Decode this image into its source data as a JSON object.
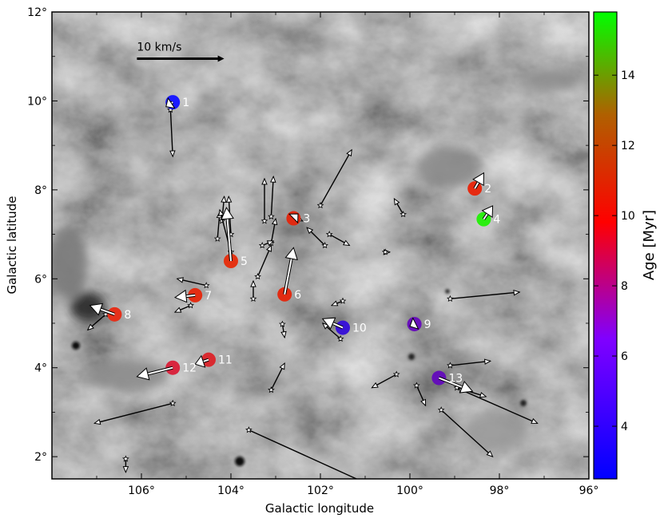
{
  "chart_data": {
    "type": "scatter",
    "xlabel": "Galactic longitude",
    "ylabel": "Galactic latitude",
    "xlim": [
      108,
      96
    ],
    "ylim": [
      1.5,
      12
    ],
    "x_reversed": true,
    "xticks": [
      106,
      104,
      102,
      100,
      98,
      96
    ],
    "xtick_labels": [
      "106°",
      "104°",
      "102°",
      "100°",
      "98°",
      "96°"
    ],
    "yticks": [
      2,
      4,
      6,
      8,
      10,
      12
    ],
    "ytick_labels": [
      "2°",
      "4°",
      "6°",
      "8°",
      "10°",
      "12°"
    ],
    "scale_bar": {
      "label": "10 km/s",
      "l": 106.1,
      "b": 10.95,
      "length_deg": 1.95
    },
    "colorbar": {
      "label": "Age [Myr]",
      "min": 2.5,
      "max": 15.8,
      "ticks": [
        4,
        6,
        8,
        10,
        12,
        14
      ],
      "tick_labels": [
        "4",
        "6",
        "8",
        "10",
        "12",
        "14"
      ],
      "colors": [
        "#0000ff",
        "#8000ff",
        "#ff0000",
        "#00ff00"
      ]
    },
    "clusters": [
      {
        "id": "1",
        "l": 105.3,
        "b": 9.97,
        "age": 2.8,
        "color": "#1a1aff",
        "dl": 0.15,
        "db": -0.1
      },
      {
        "id": "2",
        "l": 98.55,
        "b": 8.03,
        "age": 9.8,
        "color": "#e62a10",
        "dl": -0.2,
        "db": 0.35
      },
      {
        "id": "3",
        "l": 102.6,
        "b": 7.36,
        "age": 10.1,
        "color": "#e02a12",
        "dl": -0.1,
        "db": 0.1
      },
      {
        "id": "4",
        "l": 98.35,
        "b": 7.34,
        "age": 15.5,
        "color": "#2bee11",
        "dl": -0.2,
        "db": 0.3
      },
      {
        "id": "5",
        "l": 104.0,
        "b": 6.4,
        "age": 9.9,
        "color": "#e43212",
        "dl": 0.1,
        "db": 1.2
      },
      {
        "id": "6",
        "l": 102.8,
        "b": 5.65,
        "age": 10.0,
        "color": "#e22b12",
        "dl": -0.2,
        "db": 1.05
      },
      {
        "id": "7",
        "l": 104.8,
        "b": 5.63,
        "age": 9.7,
        "color": "#e32d13",
        "dl": 0.45,
        "db": -0.05
      },
      {
        "id": "8",
        "l": 106.6,
        "b": 5.2,
        "age": 9.6,
        "color": "#e5301a",
        "dl": 0.55,
        "db": 0.2
      },
      {
        "id": "9",
        "l": 99.9,
        "b": 4.98,
        "age": 5.6,
        "color": "#6810ba",
        "dl": 0.1,
        "db": -0.05
      },
      {
        "id": "10",
        "l": 101.5,
        "b": 4.9,
        "age": 4.4,
        "color": "#3a14d6",
        "dl": 0.45,
        "db": 0.2
      },
      {
        "id": "11",
        "l": 104.5,
        "b": 4.18,
        "age": 9.1,
        "color": "#d92a30",
        "dl": 0.3,
        "db": -0.1
      },
      {
        "id": "12",
        "l": 105.3,
        "b": 4.0,
        "age": 8.9,
        "color": "#d8263f",
        "dl": 0.8,
        "db": -0.2
      },
      {
        "id": "13",
        "l": 99.35,
        "b": 3.77,
        "age": 5.4,
        "color": "#6410b8",
        "dl": -0.75,
        "db": -0.3
      }
    ],
    "stars": [
      {
        "l": 105.35,
        "b": 9.8,
        "dl": -0.05,
        "db": -1.05
      },
      {
        "l": 104.2,
        "b": 7.3,
        "dl": -0.05,
        "db": 0.55
      },
      {
        "l": 104.0,
        "b": 7.0,
        "dl": 0.05,
        "db": 0.85
      },
      {
        "l": 104.3,
        "b": 6.9,
        "dl": -0.05,
        "db": 0.6
      },
      {
        "l": 104.0,
        "b": 6.6,
        "dl": 0.25,
        "db": 0.95
      },
      {
        "l": 103.4,
        "b": 6.05,
        "dl": -0.3,
        "db": 0.7
      },
      {
        "l": 103.25,
        "b": 7.3,
        "dl": 0.0,
        "db": 0.95
      },
      {
        "l": 103.1,
        "b": 7.4,
        "dl": -0.05,
        "db": 0.9
      },
      {
        "l": 103.1,
        "b": 6.8,
        "dl": -0.1,
        "db": 0.55
      },
      {
        "l": 103.3,
        "b": 6.75,
        "dl": -0.25,
        "db": 0.1
      },
      {
        "l": 102.6,
        "b": 7.4,
        "dl": -0.2,
        "db": -0.1
      },
      {
        "l": 102.0,
        "b": 7.65,
        "dl": -0.7,
        "db": 1.25
      },
      {
        "l": 101.8,
        "b": 7.0,
        "dl": -0.45,
        "db": -0.25
      },
      {
        "l": 101.9,
        "b": 6.75,
        "dl": 0.4,
        "db": 0.4
      },
      {
        "l": 103.5,
        "b": 5.55,
        "dl": 0.0,
        "db": 0.4
      },
      {
        "l": 104.55,
        "b": 5.85,
        "dl": 0.65,
        "db": 0.15
      },
      {
        "l": 104.9,
        "b": 5.4,
        "dl": 0.35,
        "db": -0.15
      },
      {
        "l": 102.85,
        "b": 4.98,
        "dl": -0.05,
        "db": -0.3
      },
      {
        "l": 101.55,
        "b": 4.65,
        "dl": 0.4,
        "db": 0.35
      },
      {
        "l": 101.5,
        "b": 5.5,
        "dl": 0.25,
        "db": -0.1
      },
      {
        "l": 100.55,
        "b": 6.6,
        "dl": -0.1,
        "db": 0.0
      },
      {
        "l": 100.15,
        "b": 7.45,
        "dl": 0.2,
        "db": 0.35
      },
      {
        "l": 103.1,
        "b": 3.5,
        "dl": -0.3,
        "db": 0.6
      },
      {
        "l": 100.3,
        "b": 3.85,
        "dl": 0.55,
        "db": -0.3
      },
      {
        "l": 99.85,
        "b": 3.6,
        "dl": -0.2,
        "db": -0.45
      },
      {
        "l": 99.1,
        "b": 4.05,
        "dl": -0.9,
        "db": 0.1
      },
      {
        "l": 99.1,
        "b": 5.55,
        "dl": -1.55,
        "db": 0.15
      },
      {
        "l": 98.95,
        "b": 3.55,
        "dl": -0.65,
        "db": -0.2
      },
      {
        "l": 99.3,
        "b": 3.05,
        "dl": -1.15,
        "db": -1.05
      },
      {
        "l": 98.85,
        "b": 3.5,
        "dl": -1.7,
        "db": -0.75
      },
      {
        "l": 105.3,
        "b": 3.2,
        "dl": 1.75,
        "db": -0.45
      },
      {
        "l": 106.35,
        "b": 1.95,
        "dl": 0.0,
        "db": -0.3
      },
      {
        "l": 106.8,
        "b": 5.2,
        "dl": 0.4,
        "db": -0.35
      },
      {
        "l": 103.6,
        "b": 2.6,
        "dl": -3.5,
        "db": -1.6
      }
    ]
  }
}
